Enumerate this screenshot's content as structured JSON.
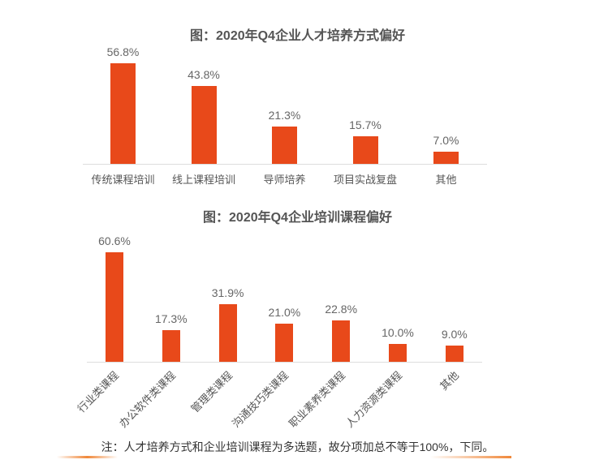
{
  "chart_data": [
    {
      "type": "bar",
      "title": "图：2020年Q4企业人才培养方式偏好",
      "categories": [
        "传统课程培训",
        "线上课程培训",
        "导师培养",
        "项目实战复盘",
        "其他"
      ],
      "values": [
        56.8,
        43.8,
        21.3,
        15.7,
        7.0
      ],
      "value_labels": [
        "56.8%",
        "43.8%",
        "21.3%",
        "15.7%",
        "7.0%"
      ],
      "xlabel": "",
      "ylabel": "",
      "grid": false,
      "legend": null,
      "color": "#E8491A"
    },
    {
      "type": "bar",
      "title": "图：2020年Q4企业培训课程偏好",
      "categories": [
        "行业类课程",
        "办公软件类课程",
        "管理类课程",
        "沟通技巧类课程",
        "职业素养类课程",
        "人力资源类课程",
        "其他"
      ],
      "values": [
        60.6,
        17.3,
        31.9,
        21.0,
        22.8,
        10.0,
        9.0
      ],
      "value_labels": [
        "60.6%",
        "17.3%",
        "31.9%",
        "21.0%",
        "22.8%",
        "10.0%",
        "9.0%"
      ],
      "xlabel": "",
      "ylabel": "",
      "grid": false,
      "legend": null,
      "color": "#E8491A"
    }
  ],
  "note": "注：人才培养方式和企业培训课程为多选题，故分项加总不等于100%，下同。"
}
